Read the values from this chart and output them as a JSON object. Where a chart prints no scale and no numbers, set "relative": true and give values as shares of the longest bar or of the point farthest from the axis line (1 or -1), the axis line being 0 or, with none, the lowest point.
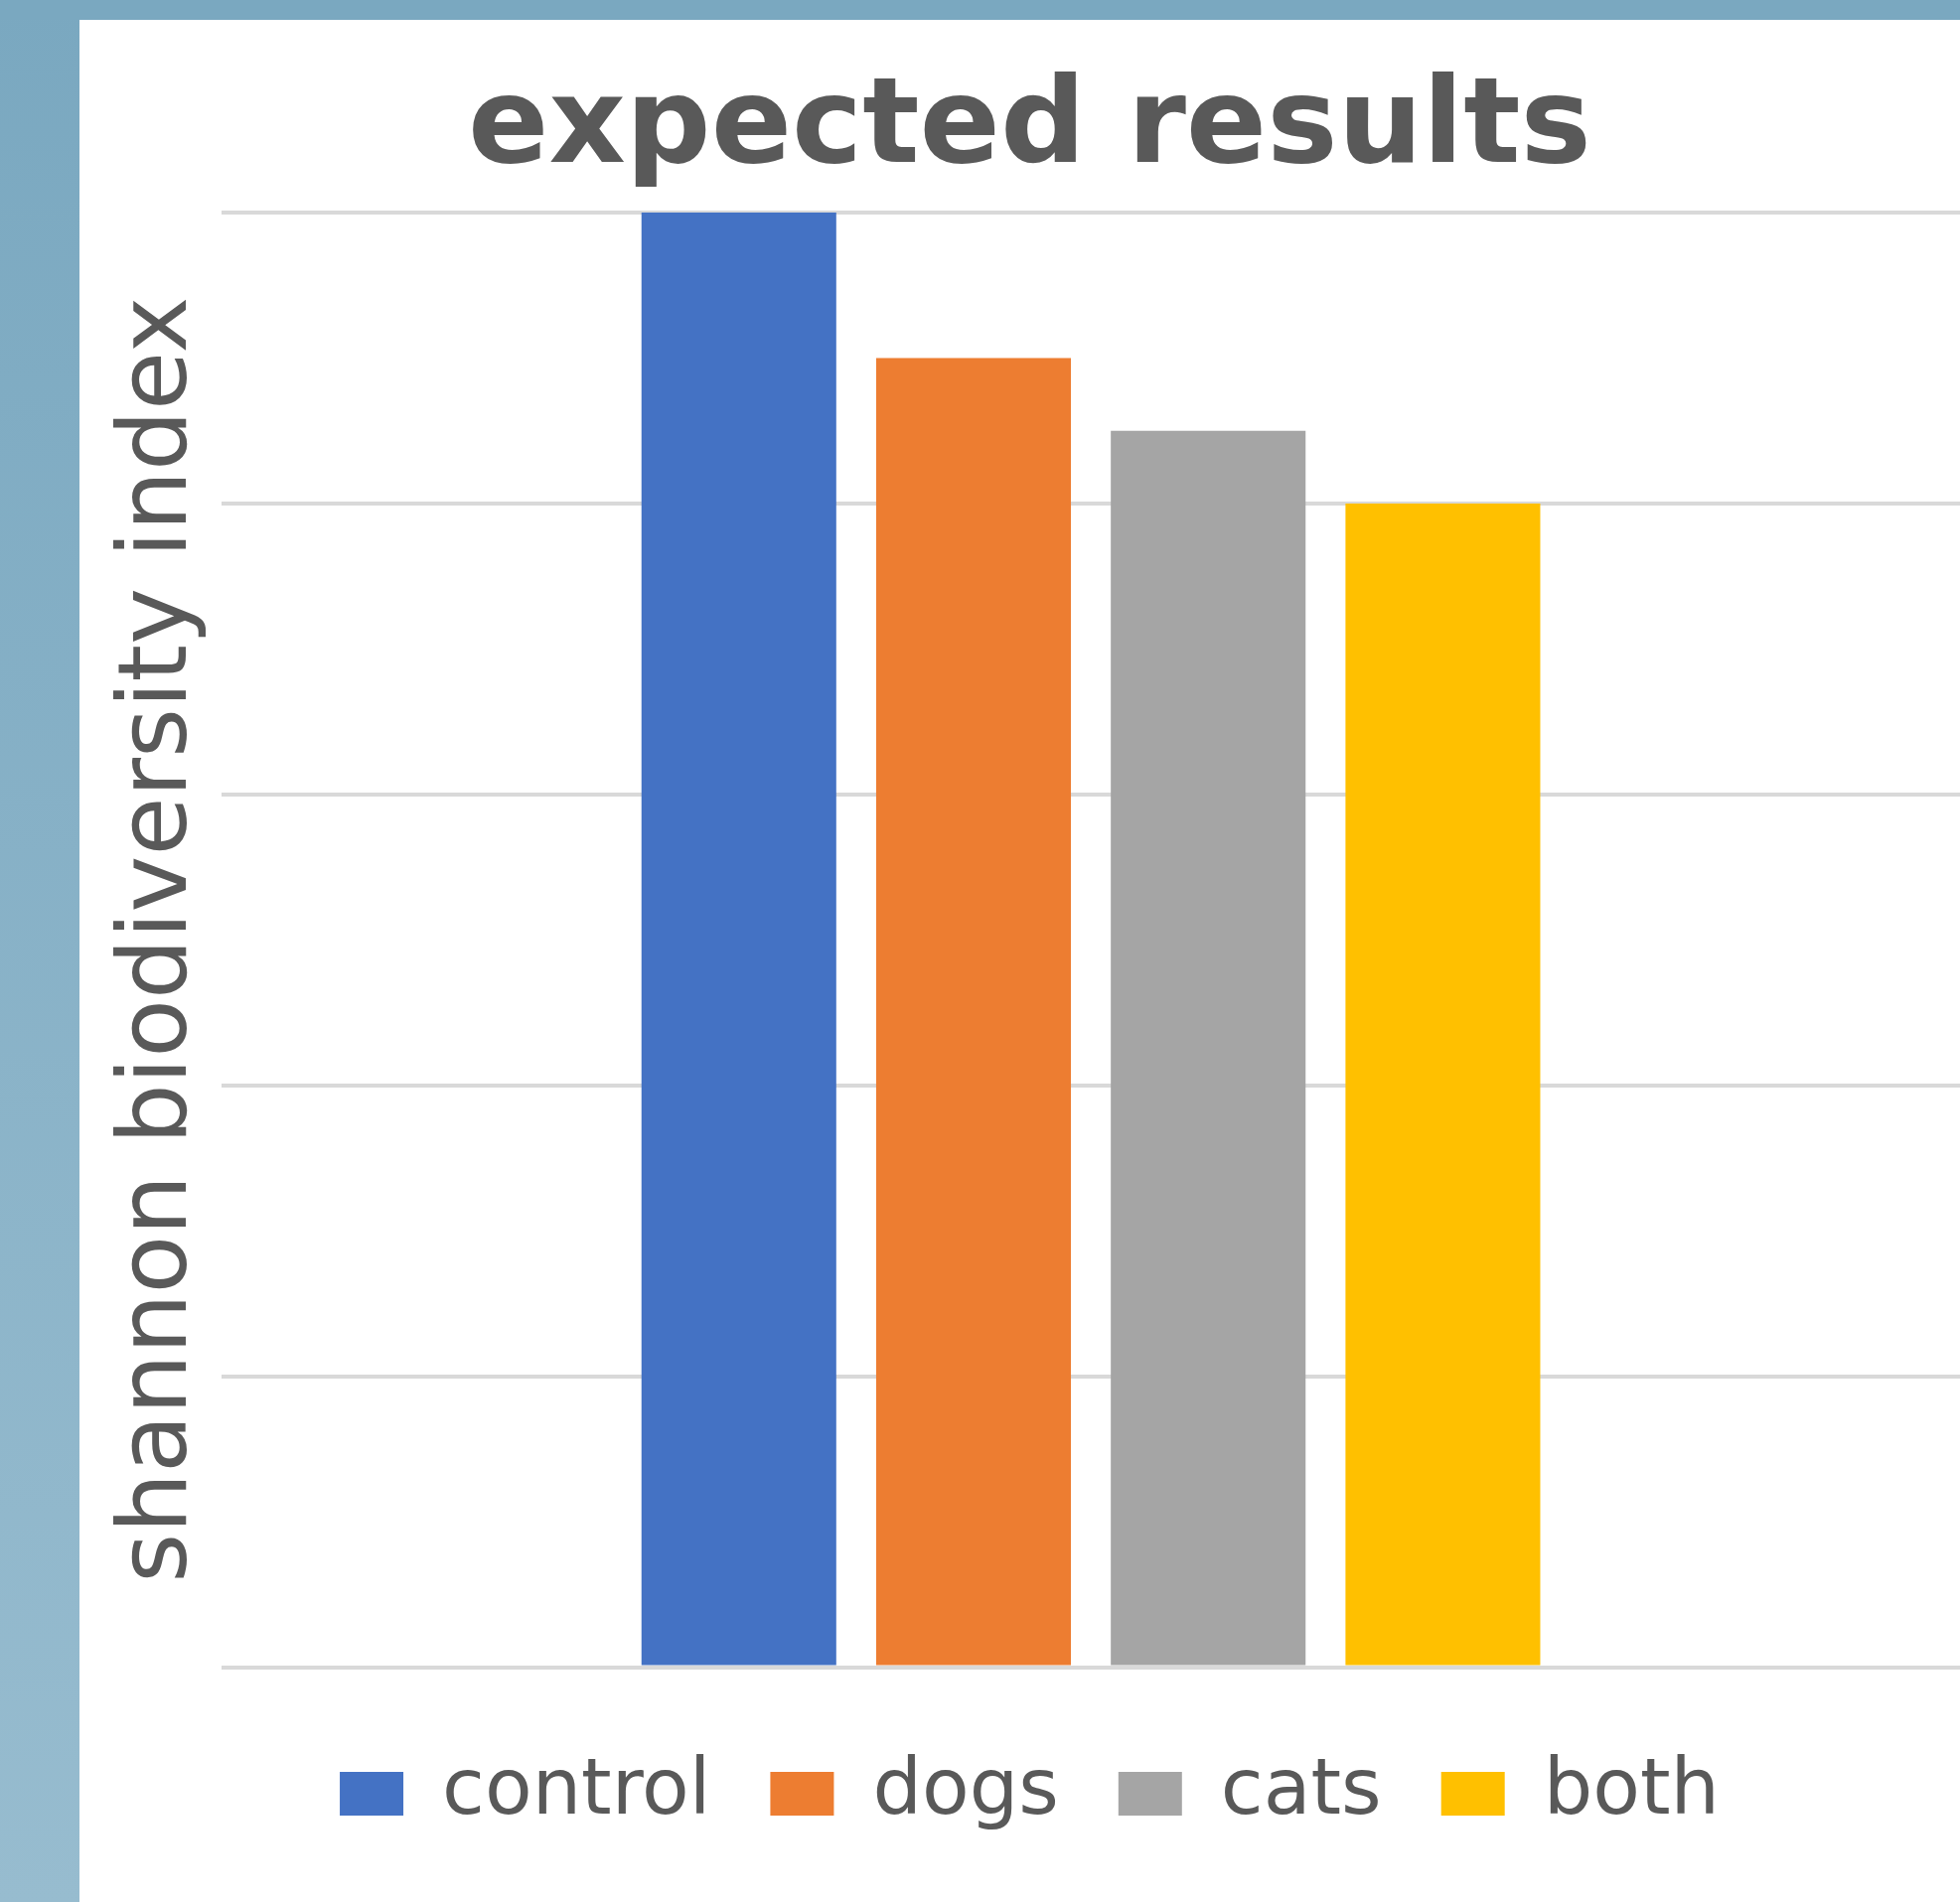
{
  "chart_data": {
    "type": "bar",
    "title": "expected results",
    "ylabel": "shannon biodiversity index",
    "categories": [
      null
    ],
    "relative": true,
    "grid": "y",
    "legend": "bottom",
    "series": [
      {
        "name": "control",
        "color": "#4472c4",
        "values": [
          1
        ]
      },
      {
        "name": "dogs",
        "color": "#ed7d31",
        "values": [
          0.9
        ]
      },
      {
        "name": "cats",
        "color": "#a5a5a5",
        "values": [
          0.85
        ]
      },
      {
        "name": "both",
        "color": "#ffc000",
        "values": [
          0.8
        ]
      }
    ]
  }
}
